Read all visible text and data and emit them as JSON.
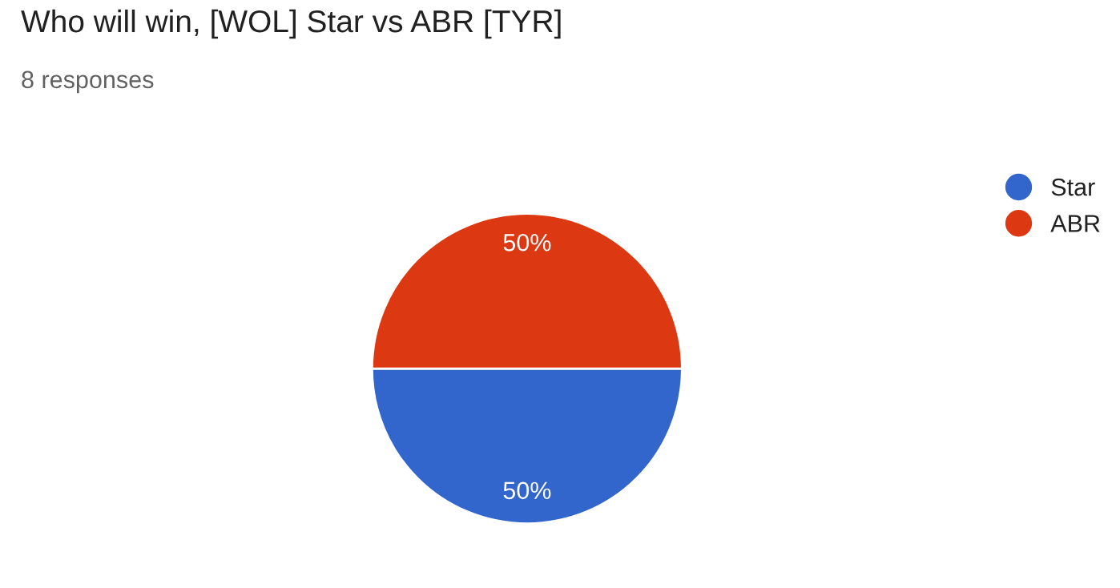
{
  "chart_data": {
    "type": "pie",
    "title": "Who will win, [WOL] Star vs ABR [TYR]",
    "subtitle": "8 responses",
    "categories": [
      "Star",
      "ABR"
    ],
    "values": [
      50,
      50
    ],
    "value_labels": [
      "50%",
      "50%"
    ],
    "colors": [
      "#3366cc",
      "#dc3912"
    ],
    "legend": "right"
  }
}
